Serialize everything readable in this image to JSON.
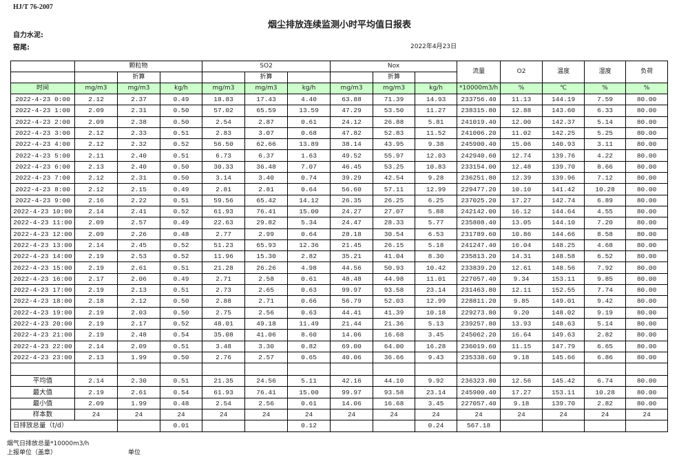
{
  "standard": "HJ/T  76-2007",
  "title": "烟尘排放连续监测小时平均值日报表",
  "company_label": "自力水泥:",
  "kiln_label": "窑尾:",
  "report_date": "2022年4月23日",
  "header": {
    "groups": [
      "颗粒物",
      "SO2",
      "Nox"
    ],
    "converted": "折算",
    "singles": [
      "流量",
      "O2",
      "温度",
      "湿度",
      "负荷"
    ],
    "units": [
      "时间",
      "mg/m3",
      "mg/m3",
      "kg/h",
      "mg/m3",
      "mg/m3",
      "kg/h",
      "mg/m3",
      "mg/m3",
      "kg/h",
      "*10000m3/h",
      "%",
      "℃",
      "%",
      "%"
    ]
  },
  "rows": [
    [
      "2022-4-23  0:00",
      "2.12",
      "2.37",
      "0.49",
      "18.83",
      "17.43",
      "4.40",
      "63.88",
      "71.39",
      "14.93",
      "233756.40",
      "11.13",
      "144.19",
      "7.59",
      "80.00"
    ],
    [
      "2022-4-23  1:00",
      "2.09",
      "2.31",
      "0.50",
      "57.02",
      "65.59",
      "13.59",
      "47.29",
      "53.50",
      "11.27",
      "238315.80",
      "12.88",
      "143.60",
      "6.33",
      "80.00"
    ],
    [
      "2022-4-23  2:00",
      "2.09",
      "2.38",
      "0.50",
      "2.54",
      "2.87",
      "0.61",
      "24.12",
      "26.88",
      "5.81",
      "241019.40",
      "12.00",
      "142.37",
      "5.14",
      "80.00"
    ],
    [
      "2022-4-23  3:00",
      "2.12",
      "2.33",
      "0.51",
      "2.83",
      "3.07",
      "0.68",
      "47.82",
      "52.83",
      "11.52",
      "241006.20",
      "11.02",
      "142.25",
      "5.25",
      "80.00"
    ],
    [
      "2022-4-23  4:00",
      "2.12",
      "2.32",
      "0.52",
      "56.50",
      "62.66",
      "13.89",
      "38.14",
      "43.95",
      "9.38",
      "245900.40",
      "15.06",
      "140.93",
      "3.11",
      "80.00"
    ],
    [
      "2022-4-23  5:00",
      "2.11",
      "2.40",
      "0.51",
      "6.73",
      "6.37",
      "1.63",
      "49.52",
      "55.97",
      "12.03",
      "242940.60",
      "12.74",
      "139.76",
      "4.22",
      "80.00"
    ],
    [
      "2022-4-23  6:00",
      "2.13",
      "2.40",
      "0.50",
      "30.33",
      "36.48",
      "7.07",
      "46.45",
      "53.25",
      "10.83",
      "233154.00",
      "12.48",
      "139.70",
      "8.66",
      "80.00"
    ],
    [
      "2022-4-23  7:00",
      "2.12",
      "2.31",
      "0.50",
      "3.14",
      "3.40",
      "0.74",
      "39.29",
      "42.54",
      "9.28",
      "236251.80",
      "12.39",
      "139.96",
      "7.12",
      "80.00"
    ],
    [
      "2022-4-23  8:00",
      "2.12",
      "2.15",
      "0.49",
      "2.81",
      "2.81",
      "0.64",
      "56.60",
      "57.11",
      "12.99",
      "229477.20",
      "10.10",
      "141.42",
      "10.28",
      "80.00"
    ],
    [
      "2022-4-23  9:00",
      "2.16",
      "2.22",
      "0.51",
      "59.56",
      "65.42",
      "14.12",
      "26.35",
      "26.25",
      "6.25",
      "237025.20",
      "17.27",
      "142.74",
      "6.89",
      "80.00"
    ],
    [
      "2022-4-23 10:00",
      "2.14",
      "2.41",
      "0.52",
      "61.93",
      "76.41",
      "15.00",
      "24.27",
      "27.07",
      "5.88",
      "242142.00",
      "16.12",
      "144.64",
      "4.55",
      "80.00"
    ],
    [
      "2022-4-23 11:00",
      "2.09",
      "2.57",
      "0.49",
      "22.63",
      "29.82",
      "5.34",
      "24.47",
      "28.33",
      "5.77",
      "235808.40",
      "13.05",
      "144.10",
      "7.20",
      "80.00"
    ],
    [
      "2022-4-23 12:00",
      "2.09",
      "2.26",
      "0.48",
      "2.77",
      "2.99",
      "0.64",
      "28.18",
      "30.54",
      "6.53",
      "231789.60",
      "10.86",
      "144.66",
      "8.58",
      "80.00"
    ],
    [
      "2022-4-23 13:00",
      "2.14",
      "2.45",
      "0.52",
      "51.23",
      "65.93",
      "12.36",
      "21.45",
      "26.15",
      "5.18",
      "241247.40",
      "16.04",
      "148.25",
      "4.68",
      "80.00"
    ],
    [
      "2022-4-23 14:00",
      "2.19",
      "2.53",
      "0.52",
      "11.96",
      "15.30",
      "2.82",
      "35.21",
      "41.04",
      "8.30",
      "235813.20",
      "14.31",
      "148.58",
      "6.52",
      "80.00"
    ],
    [
      "2022-4-23 15:00",
      "2.19",
      "2.61",
      "0.51",
      "21.28",
      "26.26",
      "4.98",
      "44.56",
      "50.93",
      "10.42",
      "233839.20",
      "12.61",
      "148.56",
      "7.92",
      "80.00"
    ],
    [
      "2022-4-23 16:00",
      "2.17",
      "2.06",
      "0.49",
      "2.71",
      "2.58",
      "0.61",
      "48.48",
      "44.98",
      "11.01",
      "227057.40",
      "9.34",
      "153.11",
      "9.85",
      "80.00"
    ],
    [
      "2022-4-23 17:00",
      "2.19",
      "2.13",
      "0.51",
      "2.73",
      "2.65",
      "0.63",
      "99.97",
      "93.58",
      "23.14",
      "231463.80",
      "12.11",
      "152.55",
      "7.74",
      "80.00"
    ],
    [
      "2022-4-23 18:00",
      "2.18",
      "2.12",
      "0.50",
      "2.88",
      "2.71",
      "0.66",
      "56.79",
      "52.03",
      "12.99",
      "228811.20",
      "9.85",
      "149.01",
      "9.42",
      "80.00"
    ],
    [
      "2022-4-23 19:00",
      "2.19",
      "2.03",
      "0.50",
      "2.75",
      "2.56",
      "0.63",
      "44.41",
      "41.39",
      "10.18",
      "229273.80",
      "9.20",
      "148.02",
      "9.19",
      "80.00"
    ],
    [
      "2022-4-23 20:00",
      "2.19",
      "2.17",
      "0.52",
      "48.01",
      "49.18",
      "11.49",
      "21.44",
      "21.36",
      "5.13",
      "239257.80",
      "13.93",
      "148.63",
      "5.14",
      "80.00"
    ],
    [
      "2022-4-23 21:00",
      "2.19",
      "2.48",
      "0.54",
      "35.08",
      "41.06",
      "8.60",
      "14.06",
      "16.68",
      "3.45",
      "245062.20",
      "16.64",
      "149.63",
      "2.82",
      "80.00"
    ],
    [
      "2022-4-23 22:00",
      "2.14",
      "2.09",
      "0.51",
      "3.48",
      "3.30",
      "0.82",
      "69.00",
      "64.00",
      "16.28",
      "236019.60",
      "11.15",
      "147.79",
      "6.65",
      "80.00"
    ],
    [
      "2022-4-23 23:00",
      "2.13",
      "1.99",
      "0.50",
      "2.76",
      "2.57",
      "0.65",
      "40.06",
      "36.66",
      "9.43",
      "235338.60",
      "9.18",
      "145.66",
      "6.86",
      "80.00"
    ]
  ],
  "summary": [
    [
      "平均值",
      "2.14",
      "2.30",
      "0.51",
      "21.35",
      "24.56",
      "5.11",
      "42.16",
      "44.10",
      "9.92",
      "236323.80",
      "12.56",
      "145.42",
      "6.74",
      "80.00"
    ],
    [
      "最大值",
      "2.19",
      "2.61",
      "0.54",
      "61.93",
      "76.41",
      "15.00",
      "99.97",
      "93.58",
      "23.14",
      "245900.40",
      "17.27",
      "153.11",
      "10.28",
      "80.00"
    ],
    [
      "最小值",
      "2.09",
      "1.99",
      "0.48",
      "2.54",
      "2.56",
      "0.61",
      "14.06",
      "16.68",
      "3.45",
      "227057.40",
      "9.18",
      "139.70",
      "2.82",
      "80.00"
    ],
    [
      "样本数",
      "24",
      "24",
      "24",
      "24",
      "24",
      "24",
      "24",
      "24",
      "24",
      "24",
      "24",
      "24",
      "24",
      "24"
    ]
  ],
  "daily_total": [
    "日排放总量（t/d）",
    "",
    "0.01",
    "",
    "",
    "0.12",
    "",
    "",
    "0.24",
    "567.18",
    "",
    "",
    "",
    ""
  ],
  "footer": {
    "flue_gas_total": "烟气日排放总量*10000m3/h",
    "reporting_unit": "上报单位（盖章）",
    "unit_label": "单位"
  },
  "colors": {
    "units_row_bg": "#ccffcc",
    "border": "#000000"
  }
}
